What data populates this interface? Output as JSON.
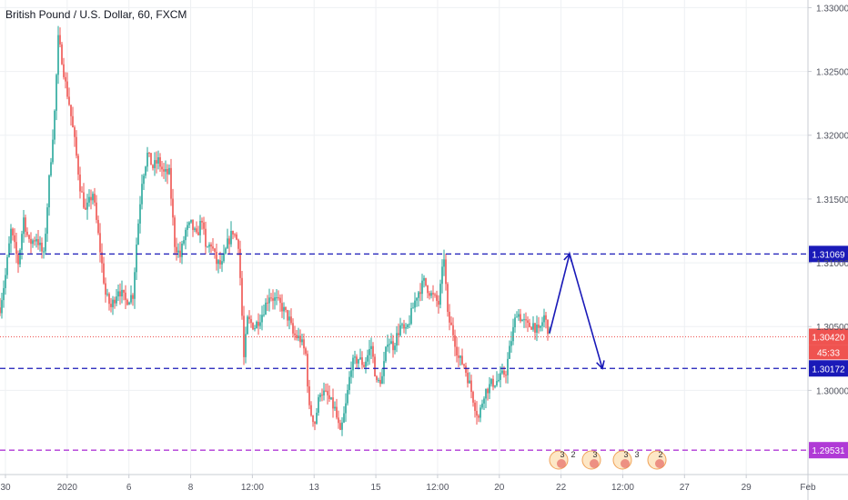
{
  "chart_data": {
    "type": "candlestick",
    "title": "British Pound / U.S. Dollar, 60, FXCM",
    "y_ticks": [
      "1.33000",
      "1.32500",
      "1.32000",
      "1.31500",
      "1.31000",
      "1.30500",
      "1.30000"
    ],
    "x_ticks": [
      "30",
      "2020",
      "6",
      "8",
      "12:00",
      "13",
      "15",
      "12:00",
      "20",
      "22",
      "12:00",
      "27",
      "29",
      "Feb"
    ],
    "ylim": [
      1.2934,
      1.3306
    ],
    "grid": true,
    "up_color": "#26a69a",
    "down_color": "#ef5350",
    "price_path": [
      [
        0,
        1.3065
      ],
      [
        6,
        1.309
      ],
      [
        12,
        1.3125
      ],
      [
        20,
        1.31
      ],
      [
        26,
        1.3135
      ],
      [
        32,
        1.3115
      ],
      [
        40,
        1.312
      ],
      [
        48,
        1.3105
      ],
      [
        54,
        1.3165
      ],
      [
        60,
        1.3218
      ],
      [
        64,
        1.3275
      ],
      [
        68,
        1.326
      ],
      [
        72,
        1.324
      ],
      [
        76,
        1.3225
      ],
      [
        82,
        1.3195
      ],
      [
        88,
        1.316
      ],
      [
        94,
        1.314
      ],
      [
        102,
        1.3155
      ],
      [
        110,
        1.311
      ],
      [
        116,
        1.3075
      ],
      [
        122,
        1.3065
      ],
      [
        130,
        1.308
      ],
      [
        138,
        1.307
      ],
      [
        146,
        1.3075
      ],
      [
        150,
        1.3115
      ],
      [
        156,
        1.3165
      ],
      [
        162,
        1.3185
      ],
      [
        168,
        1.3175
      ],
      [
        174,
        1.318
      ],
      [
        180,
        1.317
      ],
      [
        186,
        1.317
      ],
      [
        192,
        1.3115
      ],
      [
        198,
        1.3105
      ],
      [
        204,
        1.3125
      ],
      [
        210,
        1.313
      ],
      [
        216,
        1.312
      ],
      [
        222,
        1.3135
      ],
      [
        226,
        1.311
      ],
      [
        232,
        1.3115
      ],
      [
        238,
        1.31
      ],
      [
        244,
        1.3098
      ],
      [
        250,
        1.3115
      ],
      [
        256,
        1.3125
      ],
      [
        262,
        1.3115
      ],
      [
        265,
        1.3075
      ],
      [
        268,
        1.3025
      ],
      [
        272,
        1.3055
      ],
      [
        280,
        1.305
      ],
      [
        288,
        1.306
      ],
      [
        296,
        1.3075
      ],
      [
        304,
        1.307
      ],
      [
        310,
        1.3065
      ],
      [
        318,
        1.3055
      ],
      [
        322,
        1.3044
      ],
      [
        330,
        1.304
      ],
      [
        336,
        1.3028
      ],
      [
        340,
        1.2985
      ],
      [
        346,
        1.2975
      ],
      [
        352,
        1.3
      ],
      [
        360,
        1.2995
      ],
      [
        368,
        1.2985
      ],
      [
        374,
        1.2965
      ],
      [
        380,
        1.2988
      ],
      [
        386,
        1.302
      ],
      [
        394,
        1.3025
      ],
      [
        400,
        1.302
      ],
      [
        408,
        1.3035
      ],
      [
        414,
        1.3005
      ],
      [
        420,
        1.301
      ],
      [
        426,
        1.304
      ],
      [
        432,
        1.3035
      ],
      [
        440,
        1.305
      ],
      [
        446,
        1.3045
      ],
      [
        452,
        1.306
      ],
      [
        458,
        1.3075
      ],
      [
        466,
        1.3085
      ],
      [
        474,
        1.3075
      ],
      [
        482,
        1.3068
      ],
      [
        488,
        1.3105
      ],
      [
        492,
        1.3058
      ],
      [
        498,
        1.3045
      ],
      [
        504,
        1.3025
      ],
      [
        510,
        1.302
      ],
      [
        516,
        1.3005
      ],
      [
        522,
        1.2988
      ],
      [
        526,
        1.2978
      ],
      [
        532,
        1.2998
      ],
      [
        540,
        1.3005
      ],
      [
        548,
        1.3008
      ],
      [
        556,
        1.3015
      ],
      [
        562,
        1.304
      ],
      [
        568,
        1.3062
      ],
      [
        574,
        1.3055
      ],
      [
        580,
        1.305
      ],
      [
        586,
        1.3052
      ],
      [
        592,
        1.3045
      ],
      [
        598,
        1.3058
      ],
      [
        604,
        1.3044
      ]
    ],
    "series_x_range": [
      0,
      604
    ],
    "time_axis_range": [
      0,
      888
    ],
    "horizontal_levels": [
      {
        "price": 1.31069,
        "label": "1.31069",
        "color": "#1a1ab8",
        "style": "dashed"
      },
      {
        "price": 1.30172,
        "label": "1.30172",
        "color": "#1a1ab8",
        "style": "dashed"
      },
      {
        "price": 1.29531,
        "label": "1.29531",
        "color": "#b03ad6",
        "style": "dashed"
      }
    ],
    "current_price": {
      "price": 1.3042,
      "label": "1.30420",
      "countdown": "45:33",
      "color": "#ef5350"
    },
    "projection": {
      "color": "#1a1ab8",
      "points": [
        [
          604,
          1.3045
        ],
        [
          626,
          1.31069
        ],
        [
          662,
          1.30172
        ]
      ]
    },
    "event_markers": [
      {
        "x": 614,
        "count": "3",
        "extra": "2"
      },
      {
        "x": 650,
        "count": "3",
        "extra": ""
      },
      {
        "x": 684,
        "count": "3",
        "extra": "3"
      },
      {
        "x": 722,
        "count": "2",
        "extra": ""
      }
    ]
  }
}
